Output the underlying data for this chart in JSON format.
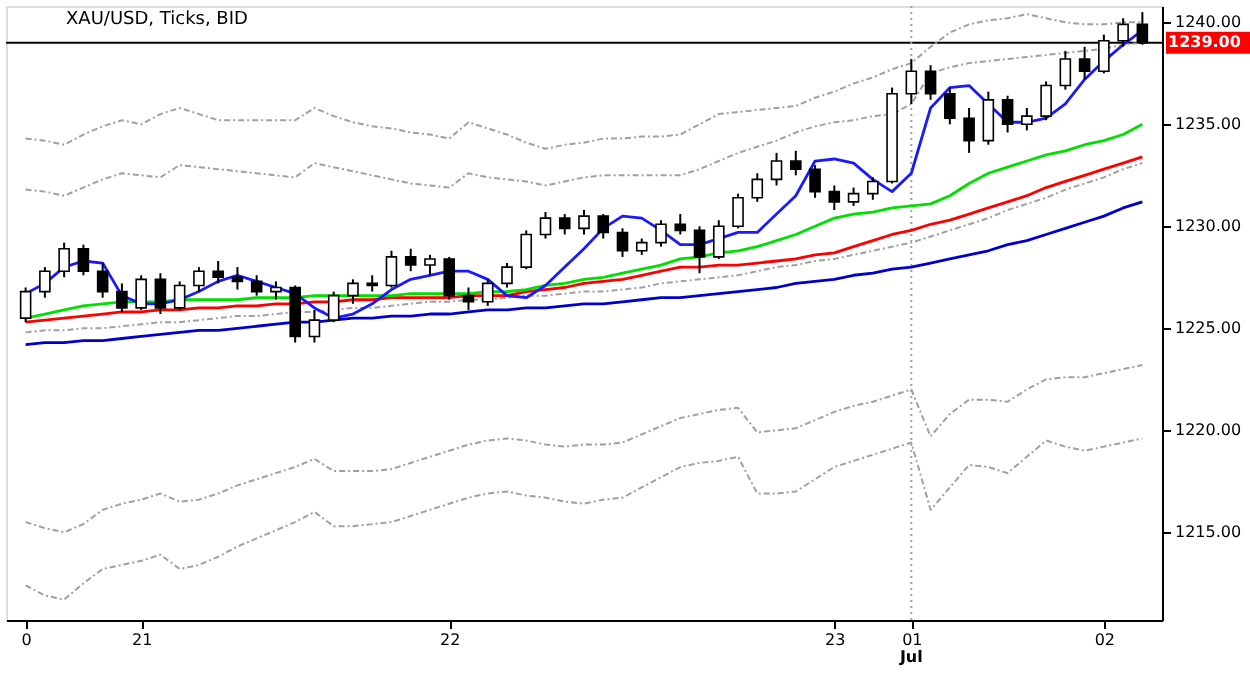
{
  "chart_data": {
    "type": "candlestick",
    "title": "XAU/USD, Ticks, BID",
    "categories": [
      "0",
      null,
      null,
      null,
      null,
      null,
      "21",
      null,
      null,
      null,
      null,
      null,
      null,
      null,
      null,
      null,
      null,
      null,
      null,
      null,
      null,
      null,
      "22",
      null,
      null,
      null,
      null,
      null,
      null,
      null,
      null,
      null,
      null,
      null,
      null,
      null,
      null,
      null,
      null,
      null,
      null,
      null,
      "23",
      null,
      null,
      null,
      "01",
      null,
      null,
      null,
      null,
      null,
      null,
      null,
      null,
      null,
      "02",
      null,
      null
    ],
    "ohlc": [
      [
        1225.5,
        1227.0,
        1225.3,
        1226.8
      ],
      [
        1226.8,
        1228.0,
        1226.5,
        1227.8
      ],
      [
        1227.8,
        1229.2,
        1227.5,
        1228.9
      ],
      [
        1228.9,
        1229.1,
        1227.6,
        1227.8
      ],
      [
        1227.8,
        1228.2,
        1226.5,
        1226.8
      ],
      [
        1226.8,
        1227.2,
        1225.8,
        1226.0
      ],
      [
        1226.0,
        1227.6,
        1225.9,
        1227.4
      ],
      [
        1227.4,
        1227.7,
        1225.7,
        1226.0
      ],
      [
        1226.0,
        1227.3,
        1225.9,
        1227.1
      ],
      [
        1227.1,
        1228.0,
        1226.8,
        1227.8
      ],
      [
        1227.8,
        1228.3,
        1227.2,
        1227.5
      ],
      [
        1227.5,
        1228.0,
        1226.9,
        1227.3
      ],
      [
        1227.3,
        1227.6,
        1226.6,
        1226.8
      ],
      [
        1226.8,
        1227.3,
        1226.4,
        1227.0
      ],
      [
        1227.0,
        1227.1,
        1224.3,
        1224.6
      ],
      [
        1224.6,
        1225.9,
        1224.3,
        1225.4
      ],
      [
        1225.4,
        1226.8,
        1225.3,
        1226.6
      ],
      [
        1226.6,
        1227.4,
        1226.2,
        1227.2
      ],
      [
        1227.2,
        1227.6,
        1226.8,
        1227.1
      ],
      [
        1227.1,
        1228.8,
        1227.0,
        1228.5
      ],
      [
        1228.5,
        1228.9,
        1227.8,
        1228.1
      ],
      [
        1228.1,
        1228.6,
        1227.6,
        1228.4
      ],
      [
        1228.4,
        1228.5,
        1226.4,
        1226.6
      ],
      [
        1226.6,
        1227.0,
        1225.9,
        1226.3
      ],
      [
        1226.3,
        1227.4,
        1226.1,
        1227.2
      ],
      [
        1227.2,
        1228.2,
        1227.0,
        1228.0
      ],
      [
        1228.0,
        1229.8,
        1227.9,
        1229.6
      ],
      [
        1229.6,
        1230.7,
        1229.4,
        1230.4
      ],
      [
        1230.4,
        1230.6,
        1229.6,
        1229.9
      ],
      [
        1229.9,
        1230.8,
        1229.6,
        1230.5
      ],
      [
        1230.5,
        1230.6,
        1229.4,
        1229.7
      ],
      [
        1229.7,
        1229.9,
        1228.5,
        1228.8
      ],
      [
        1228.8,
        1229.4,
        1228.6,
        1229.2
      ],
      [
        1229.2,
        1230.3,
        1229.0,
        1230.1
      ],
      [
        1230.1,
        1230.6,
        1229.6,
        1229.8
      ],
      [
        1229.8,
        1230.0,
        1227.7,
        1228.5
      ],
      [
        1228.5,
        1230.3,
        1228.4,
        1230.0
      ],
      [
        1230.0,
        1231.6,
        1229.9,
        1231.4
      ],
      [
        1231.4,
        1232.6,
        1231.2,
        1232.3
      ],
      [
        1232.3,
        1233.6,
        1232.0,
        1233.2
      ],
      [
        1233.2,
        1233.7,
        1232.5,
        1232.8
      ],
      [
        1232.8,
        1233.0,
        1231.4,
        1231.7
      ],
      [
        1231.7,
        1232.0,
        1230.8,
        1231.2
      ],
      [
        1231.2,
        1231.9,
        1231.0,
        1231.6
      ],
      [
        1231.6,
        1232.4,
        1231.3,
        1232.2
      ],
      [
        1232.2,
        1236.8,
        1232.1,
        1236.5
      ],
      [
        1236.5,
        1238.2,
        1236.0,
        1237.6
      ],
      [
        1237.6,
        1237.9,
        1236.2,
        1236.5
      ],
      [
        1236.5,
        1236.8,
        1235.0,
        1235.3
      ],
      [
        1235.3,
        1235.8,
        1233.6,
        1234.2
      ],
      [
        1234.2,
        1236.6,
        1234.0,
        1236.2
      ],
      [
        1236.2,
        1236.4,
        1234.6,
        1235.0
      ],
      [
        1235.0,
        1235.8,
        1234.7,
        1235.4
      ],
      [
        1235.4,
        1237.1,
        1235.2,
        1236.9
      ],
      [
        1236.9,
        1238.6,
        1236.7,
        1238.2
      ],
      [
        1238.2,
        1238.8,
        1237.2,
        1237.6
      ],
      [
        1237.6,
        1239.4,
        1237.5,
        1239.1
      ],
      [
        1239.1,
        1240.2,
        1238.8,
        1239.9
      ],
      [
        1239.9,
        1240.5,
        1238.9,
        1239.0
      ]
    ],
    "series": [
      {
        "type": "line",
        "color": "#a0a0a0",
        "line_style": "dashed",
        "values": [
          1234.3,
          1234.2,
          1234.0,
          1234.5,
          1234.9,
          1235.2,
          1235.0,
          1235.5,
          1235.8,
          1235.5,
          1235.2,
          1235.2,
          1235.2,
          1235.2,
          1235.2,
          1235.8,
          1235.4,
          1235.1,
          1234.9,
          1234.8,
          1234.6,
          1234.5,
          1234.3,
          1235.1,
          1234.8,
          1234.5,
          1234.1,
          1233.8,
          1234.0,
          1234.1,
          1234.3,
          1234.3,
          1234.4,
          1234.4,
          1234.5,
          1235.0,
          1235.5,
          1235.6,
          1235.7,
          1235.8,
          1235.9,
          1236.3,
          1236.6,
          1237.0,
          1237.3,
          1237.7,
          1238.0,
          1238.8,
          1239.5,
          1239.9,
          1240.1,
          1240.2,
          1240.4,
          1240.2,
          1240.0,
          1239.9,
          1239.9,
          1240.0,
          1240.0
        ]
      },
      {
        "type": "line",
        "color": "#a0a0a0",
        "line_style": "dashed",
        "values": [
          1231.8,
          1231.7,
          1231.5,
          1231.9,
          1232.3,
          1232.6,
          1232.5,
          1232.4,
          1233.0,
          1232.9,
          1232.8,
          1232.7,
          1232.6,
          1232.5,
          1232.4,
          1233.1,
          1232.9,
          1232.7,
          1232.5,
          1232.3,
          1232.1,
          1232.0,
          1231.9,
          1232.6,
          1232.4,
          1232.3,
          1232.2,
          1232.0,
          1232.2,
          1232.4,
          1232.5,
          1232.5,
          1232.5,
          1232.5,
          1232.5,
          1232.8,
          1233.2,
          1233.6,
          1233.9,
          1234.2,
          1234.6,
          1234.9,
          1235.1,
          1235.2,
          1235.4,
          1235.5,
          1236.0,
          1237.5,
          1237.8,
          1238.0,
          1238.1,
          1238.2,
          1238.3,
          1238.4,
          1238.5,
          1238.6,
          1238.7,
          1238.9,
          1239.0
        ]
      },
      {
        "type": "line",
        "color": "#a0a0a0",
        "line_style": "dashed",
        "values": [
          1224.8,
          1224.9,
          1224.9,
          1225.0,
          1225.0,
          1225.1,
          1225.2,
          1225.3,
          1225.3,
          1225.4,
          1225.5,
          1225.6,
          1225.6,
          1225.7,
          1225.8,
          1225.8,
          1225.9,
          1226.0,
          1226.0,
          1226.1,
          1226.2,
          1226.3,
          1226.3,
          1226.4,
          1226.4,
          1226.5,
          1226.6,
          1226.6,
          1226.7,
          1226.8,
          1226.8,
          1226.9,
          1227.0,
          1227.2,
          1227.3,
          1227.4,
          1227.5,
          1227.6,
          1227.8,
          1228.0,
          1228.1,
          1228.3,
          1228.4,
          1228.6,
          1228.8,
          1229.0,
          1229.2,
          1229.5,
          1229.8,
          1230.1,
          1230.4,
          1230.8,
          1231.1,
          1231.4,
          1231.8,
          1232.1,
          1232.4,
          1232.8,
          1233.1
        ]
      },
      {
        "type": "line",
        "color": "#a0a0a0",
        "line_style": "dashed",
        "values": [
          1215.5,
          1215.2,
          1215.0,
          1215.4,
          1216.1,
          1216.4,
          1216.6,
          1216.9,
          1216.5,
          1216.6,
          1216.9,
          1217.3,
          1217.6,
          1217.9,
          1218.2,
          1218.6,
          1218.0,
          1218.0,
          1218.0,
          1218.1,
          1218.4,
          1218.7,
          1219.0,
          1219.3,
          1219.5,
          1219.6,
          1219.5,
          1219.3,
          1219.2,
          1219.3,
          1219.3,
          1219.4,
          1219.8,
          1220.2,
          1220.6,
          1220.8,
          1221.0,
          1221.1,
          1219.9,
          1220.0,
          1220.1,
          1220.5,
          1220.9,
          1221.2,
          1221.4,
          1221.7,
          1222.0,
          1219.7,
          1220.8,
          1221.5,
          1221.5,
          1221.4,
          1222.0,
          1222.5,
          1222.6,
          1222.6,
          1222.8,
          1223.0,
          1223.2
        ]
      },
      {
        "type": "line",
        "color": "#a0a0a0",
        "line_style": "dashed",
        "values": [
          1212.4,
          1211.9,
          1211.7,
          1212.5,
          1213.2,
          1213.4,
          1213.6,
          1213.9,
          1213.2,
          1213.4,
          1213.8,
          1214.3,
          1214.7,
          1215.1,
          1215.5,
          1216.0,
          1215.3,
          1215.3,
          1215.4,
          1215.5,
          1215.8,
          1216.1,
          1216.4,
          1216.7,
          1216.9,
          1217.0,
          1216.8,
          1216.7,
          1216.5,
          1216.4,
          1216.6,
          1216.7,
          1217.2,
          1217.7,
          1218.2,
          1218.4,
          1218.5,
          1218.7,
          1216.9,
          1216.9,
          1217.0,
          1217.6,
          1218.2,
          1218.5,
          1218.8,
          1219.1,
          1219.4,
          1216.1,
          1217.2,
          1218.3,
          1218.2,
          1217.9,
          1218.7,
          1219.5,
          1219.2,
          1219.0,
          1219.2,
          1219.4,
          1219.6
        ]
      },
      {
        "type": "line",
        "color": "#0000cc",
        "line_style": "solid",
        "values": [
          1224.2,
          1224.3,
          1224.3,
          1224.4,
          1224.4,
          1224.5,
          1224.6,
          1224.7,
          1224.8,
          1224.9,
          1224.9,
          1225.0,
          1225.1,
          1225.2,
          1225.3,
          1225.3,
          1225.4,
          1225.5,
          1225.5,
          1225.6,
          1225.6,
          1225.7,
          1225.7,
          1225.8,
          1225.9,
          1225.9,
          1226.0,
          1226.0,
          1226.1,
          1226.2,
          1226.2,
          1226.3,
          1226.4,
          1226.5,
          1226.5,
          1226.6,
          1226.7,
          1226.8,
          1226.9,
          1227.0,
          1227.2,
          1227.3,
          1227.4,
          1227.6,
          1227.7,
          1227.9,
          1228.0,
          1228.2,
          1228.4,
          1228.6,
          1228.8,
          1229.1,
          1229.3,
          1229.6,
          1229.9,
          1230.2,
          1230.5,
          1230.9,
          1231.2
        ]
      },
      {
        "type": "line",
        "color": "#ff0000",
        "line_style": "solid",
        "values": [
          1225.3,
          1225.4,
          1225.5,
          1225.6,
          1225.7,
          1225.8,
          1225.8,
          1225.9,
          1225.9,
          1226.0,
          1226.0,
          1226.1,
          1226.1,
          1226.2,
          1226.2,
          1226.3,
          1226.3,
          1226.4,
          1226.4,
          1226.5,
          1226.5,
          1226.5,
          1226.5,
          1226.6,
          1226.6,
          1226.6,
          1226.8,
          1226.9,
          1227.0,
          1227.2,
          1227.3,
          1227.4,
          1227.6,
          1227.8,
          1228.0,
          1228.0,
          1228.1,
          1228.1,
          1228.2,
          1228.3,
          1228.4,
          1228.6,
          1228.7,
          1229.0,
          1229.3,
          1229.6,
          1229.8,
          1230.1,
          1230.3,
          1230.6,
          1230.9,
          1231.2,
          1231.5,
          1231.9,
          1232.2,
          1232.5,
          1232.8,
          1233.1,
          1233.4
        ]
      },
      {
        "type": "line",
        "color": "#00e000",
        "line_style": "solid",
        "values": [
          1225.5,
          1225.7,
          1225.9,
          1226.1,
          1226.2,
          1226.3,
          1226.3,
          1226.3,
          1226.4,
          1226.4,
          1226.4,
          1226.4,
          1226.5,
          1226.5,
          1226.5,
          1226.6,
          1226.6,
          1226.6,
          1226.6,
          1226.6,
          1226.7,
          1226.7,
          1226.7,
          1226.7,
          1226.8,
          1226.8,
          1226.9,
          1227.1,
          1227.2,
          1227.4,
          1227.5,
          1227.7,
          1227.9,
          1228.1,
          1228.4,
          1228.5,
          1228.7,
          1228.8,
          1229.0,
          1229.3,
          1229.6,
          1230.0,
          1230.4,
          1230.6,
          1230.7,
          1230.9,
          1231.0,
          1231.1,
          1231.5,
          1232.1,
          1232.6,
          1232.9,
          1233.2,
          1233.5,
          1233.7,
          1234.0,
          1234.2,
          1234.5,
          1235.0
        ]
      },
      {
        "type": "line",
        "color": "#1a1aff",
        "line_style": "solid",
        "values": [
          1226.7,
          1227.2,
          1228.0,
          1228.3,
          1228.2,
          1226.6,
          1226.2,
          1226.2,
          1226.4,
          1226.8,
          1227.3,
          1227.6,
          1227.3,
          1227.0,
          1226.7,
          1226.0,
          1225.5,
          1225.7,
          1226.2,
          1226.9,
          1227.4,
          1227.6,
          1227.8,
          1227.8,
          1227.4,
          1226.6,
          1226.5,
          1227.1,
          1228.0,
          1228.9,
          1229.9,
          1230.5,
          1230.4,
          1229.8,
          1229.1,
          1229.1,
          1229.4,
          1229.7,
          1229.7,
          1230.6,
          1231.5,
          1233.2,
          1233.3,
          1233.1,
          1232.3,
          1231.7,
          1232.6,
          1235.8,
          1236.8,
          1236.9,
          1236.0,
          1235.1,
          1235.1,
          1235.3,
          1236.0,
          1237.2,
          1238.1,
          1238.9,
          1239.6
        ]
      }
    ],
    "ylim": [
      1210.7,
      1240.8
    ],
    "yticks": [
      {
        "value": 1215,
        "label": "1215.00"
      },
      {
        "value": 1220,
        "label": "1220.00"
      },
      {
        "value": 1225,
        "label": "1225.00"
      },
      {
        "value": 1230,
        "label": "1230.00"
      },
      {
        "value": 1235,
        "label": "1235.00"
      },
      {
        "value": 1240,
        "label": "1240.00"
      }
    ],
    "ref_lines": [
      {
        "axis": "y",
        "value": 1239,
        "label": "1239.00",
        "color": "#000000",
        "line_style": "solid"
      },
      {
        "axis": "x",
        "value": "01",
        "color": "#a0a0a0",
        "line_style": "dotted"
      }
    ],
    "annotations": [
      "Jul"
    ]
  }
}
